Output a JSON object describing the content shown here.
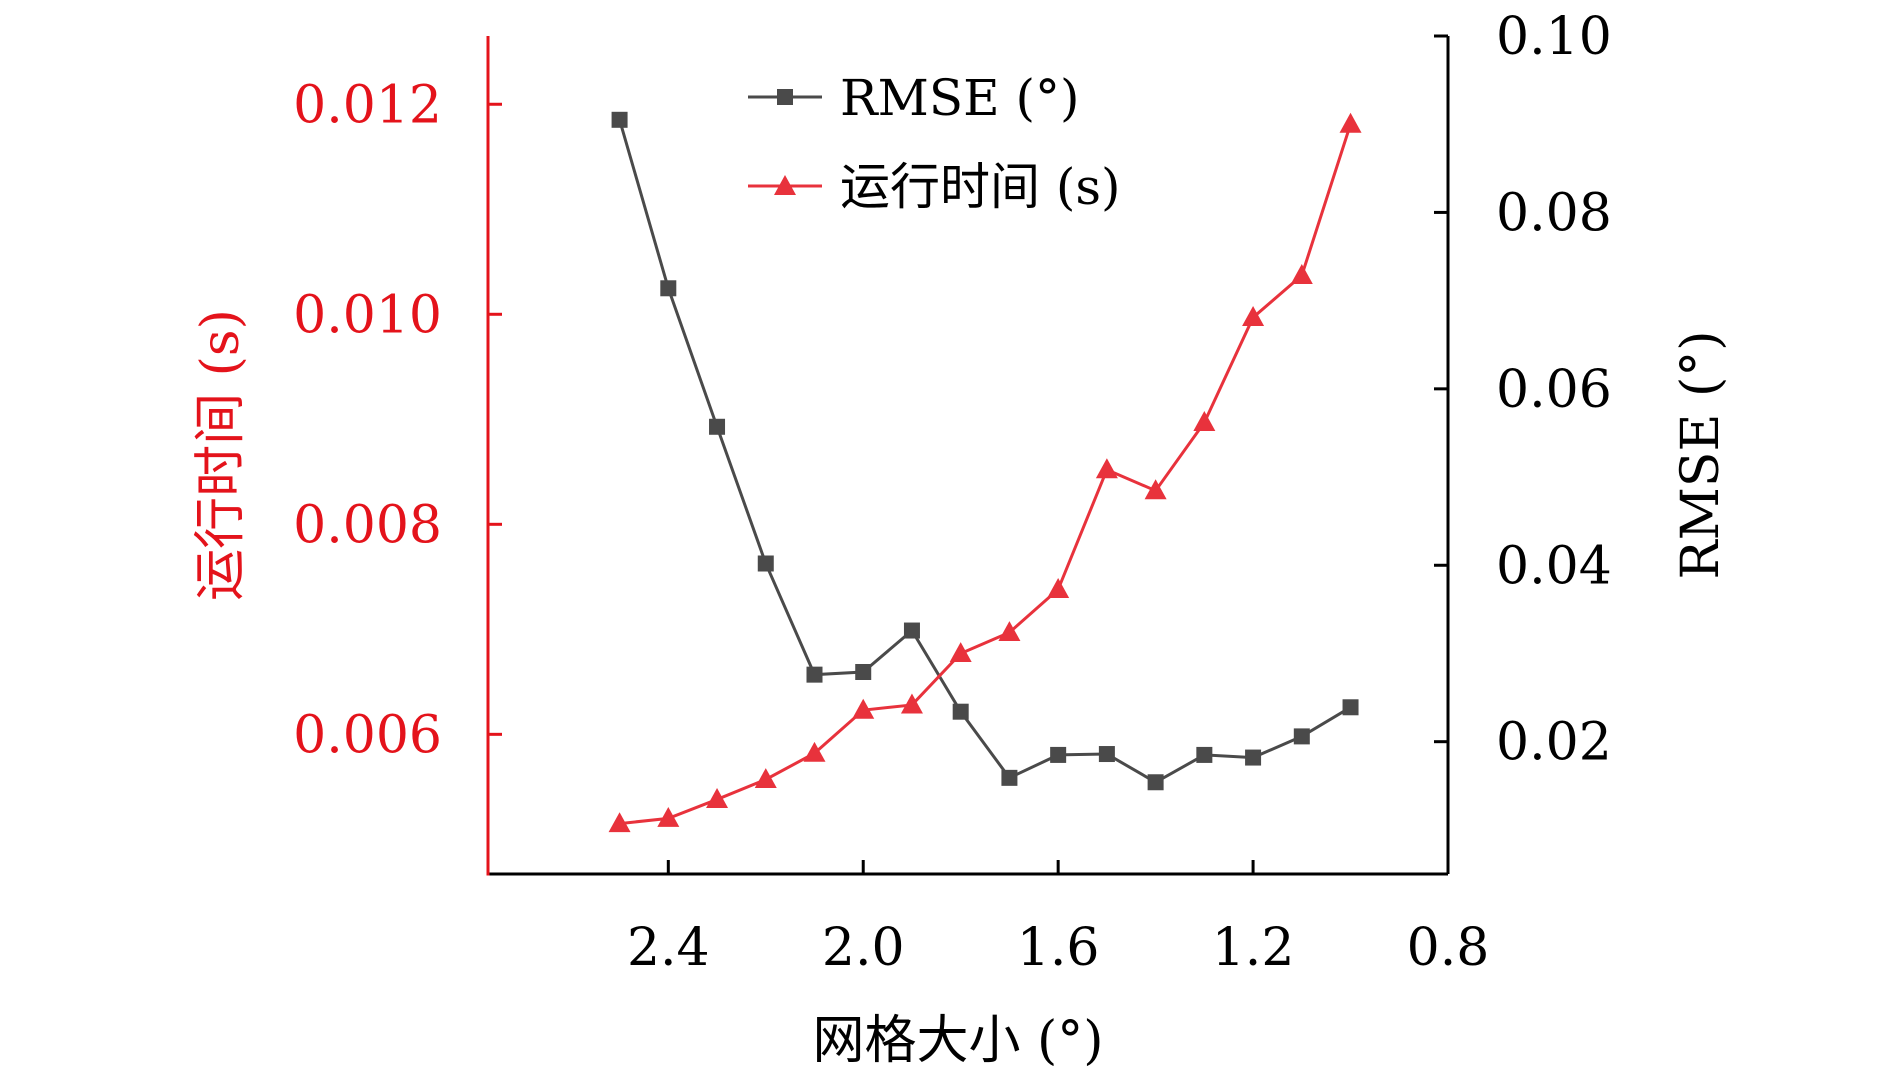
{
  "chart_data": {
    "type": "line",
    "xlabel": "网格大小 (°)",
    "ylabel_left": "运行时间 (s)",
    "ylabel_right": "RMSE (°)",
    "x_reversed": true,
    "xlim": [
      2.77,
      0.8
    ],
    "xticks": [
      2.4,
      2.0,
      1.6,
      1.2,
      0.8
    ],
    "xtick_labels": [
      "2.4",
      "2.0",
      "1.6",
      "1.2",
      "0.8"
    ],
    "ylim_left": [
      0.00467,
      0.01265
    ],
    "yticks_left": [
      0.006,
      0.008,
      0.01,
      0.012
    ],
    "ytick_labels_left": [
      "0.006",
      "0.008",
      "0.010",
      "0.012"
    ],
    "ylim_right": [
      0.005,
      0.1
    ],
    "yticks_right": [
      0.02,
      0.04,
      0.06,
      0.08,
      0.1
    ],
    "ytick_labels_right": [
      "0.02",
      "0.04",
      "0.06",
      "0.08",
      "0.10"
    ],
    "legend_position": "top",
    "colors": {
      "rmse": "#4a4a4a",
      "time": "#e8323c",
      "left_axis": "#e4131b"
    },
    "series": [
      {
        "name": "RMSE (°)",
        "axis": "right",
        "marker": "square",
        "color": "#4a4a4a",
        "x": [
          2.5,
          2.4,
          2.3,
          2.2,
          2.1,
          2.0,
          1.9,
          1.8,
          1.7,
          1.6,
          1.5,
          1.4,
          1.3,
          1.2,
          1.1,
          1.0
        ],
        "y": [
          0.0905,
          0.0714,
          0.0557,
          0.0402,
          0.0276,
          0.0279,
          0.0326,
          0.0234,
          0.0159,
          0.0185,
          0.0186,
          0.0154,
          0.0185,
          0.0182,
          0.0206,
          0.0239
        ]
      },
      {
        "name": "运行时间 (s)",
        "axis": "left",
        "marker": "triangle",
        "color": "#e8323c",
        "x": [
          2.5,
          2.4,
          2.3,
          2.2,
          2.1,
          2.0,
          1.9,
          1.8,
          1.7,
          1.6,
          1.5,
          1.4,
          1.3,
          1.2,
          1.1,
          1.0
        ],
        "y": [
          0.00515,
          0.0052,
          0.00538,
          0.00557,
          0.00582,
          0.00623,
          0.00628,
          0.00677,
          0.00697,
          0.00738,
          0.00852,
          0.00832,
          0.00897,
          0.00997,
          0.01037,
          0.01181
        ]
      }
    ]
  }
}
